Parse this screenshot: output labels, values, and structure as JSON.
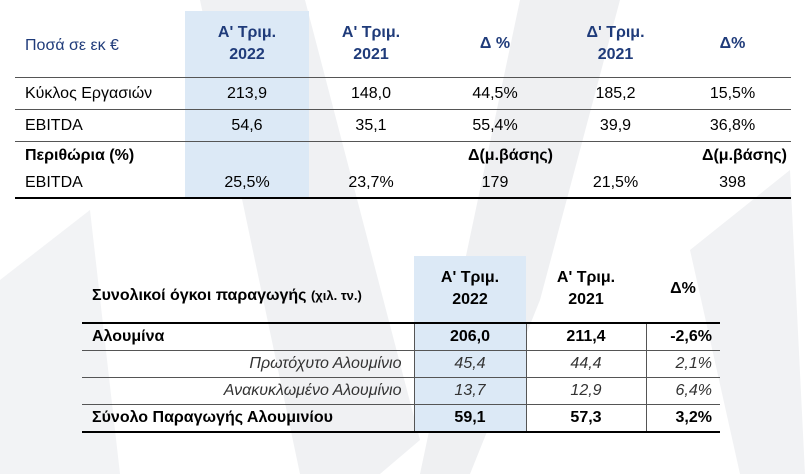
{
  "table1": {
    "header": {
      "label": "Ποσά σε εκ €",
      "cols": [
        {
          "line1": "Α' Τριμ.",
          "line2": "2022"
        },
        {
          "line1": "Α' Τριμ.",
          "line2": "2021"
        },
        {
          "line1": "Δ %",
          "line2": ""
        },
        {
          "line1": "Δ' Τριμ.",
          "line2": "2021"
        },
        {
          "line1": "Δ%",
          "line2": ""
        }
      ]
    },
    "rows": [
      {
        "label": "Κύκλος Εργασιών",
        "values": [
          "213,9",
          "148,0",
          "44,5%",
          "185,2",
          "15,5%"
        ]
      },
      {
        "label": "EBITDA",
        "values": [
          "54,6",
          "35,1",
          "55,4%",
          "39,9",
          "36,8%"
        ]
      }
    ],
    "margins": {
      "label": "Περιθώρια (%)",
      "delta1": "Δ(μ.βάσης)",
      "delta2": "Δ(μ.βάσης)"
    },
    "margin_row": {
      "label": "EBITDA",
      "values": [
        "25,5%",
        "23,7%",
        "179",
        "21,5%",
        "398"
      ]
    }
  },
  "table2": {
    "header": {
      "label": "Συνολικοί όγκοι παραγωγής",
      "unit": "(χιλ. τν.)",
      "cols": [
        {
          "line1": "Α' Τριμ.",
          "line2": "2022"
        },
        {
          "line1": "Α' Τριμ.",
          "line2": "2021"
        },
        {
          "line1": "Δ%",
          "line2": ""
        }
      ]
    },
    "rows": [
      {
        "label": "Αλουμίνα",
        "values": [
          "206,0",
          "211,4",
          "-2,6%"
        ]
      },
      {
        "label": "Πρωτόχυτο Αλουμίνιο",
        "values": [
          "45,4",
          "44,4",
          "2,1%"
        ]
      },
      {
        "label": "Ανακυκλωμένο Αλουμίνιο",
        "values": [
          "13,7",
          "12,9",
          "6,4%"
        ]
      },
      {
        "label": "Σύνολο Παραγωγής Αλουμινίου",
        "values": [
          "59,1",
          "57,3",
          "3,2%"
        ]
      }
    ]
  },
  "colors": {
    "header_text": "#1f3b7a",
    "highlight": "#dce9f6"
  }
}
